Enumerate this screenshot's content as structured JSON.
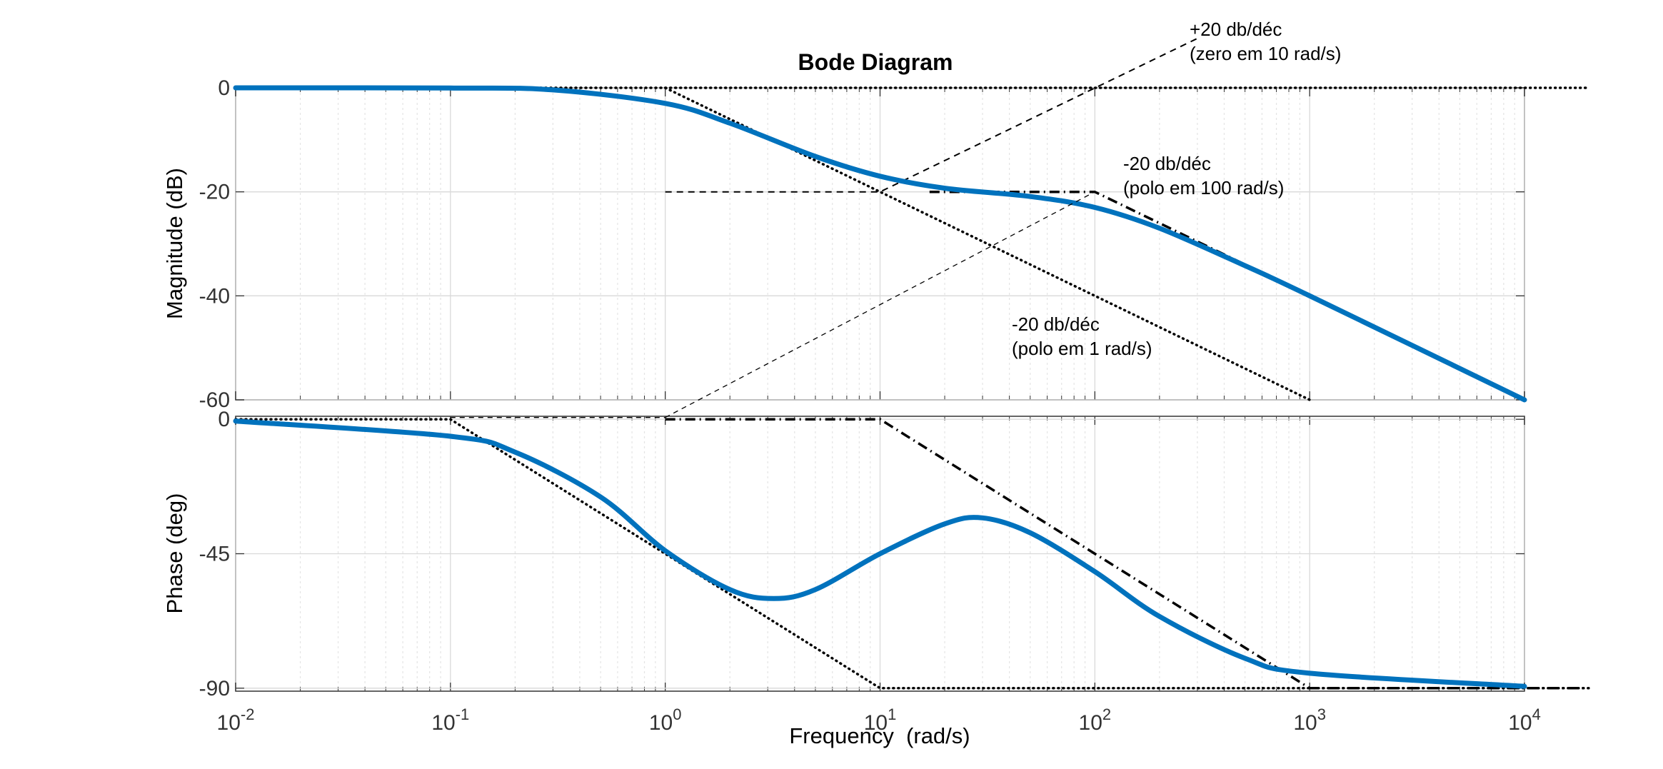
{
  "chart_data": {
    "type": "line",
    "title": "Bode Diagram",
    "xlabel": "Frequency  (rad/s)",
    "x_scale": "log",
    "xlim": [
      0.01,
      10000
    ],
    "x_ticks": [
      0.01,
      0.1,
      1,
      10,
      100,
      1000,
      10000
    ],
    "x_tick_base": "10",
    "x_tick_exponents": [
      "-2",
      "-1",
      "0",
      "1",
      "2",
      "3",
      "4"
    ],
    "grid": true,
    "magnitude": {
      "ylabel": "Magnitude (dB)",
      "ylim": [
        -60,
        0
      ],
      "y_ticks": [
        0,
        -20,
        -40,
        -60
      ],
      "y_tick_labels": [
        "0",
        "-20",
        "-40",
        "-60"
      ]
    },
    "phase": {
      "ylabel": "Phase (deg)",
      "ylim": [
        -91,
        1
      ],
      "y_ticks": [
        0,
        -45,
        -90
      ],
      "y_tick_labels": [
        "0",
        "-45",
        "-90"
      ]
    },
    "transfer_function": {
      "zeros_rad_s": [
        10
      ],
      "poles_rad_s": [
        1,
        100
      ]
    },
    "colors": {
      "response": "#0072BD",
      "asymptote": "#000000",
      "grid": "#d9d9d9",
      "axes": "#333333"
    },
    "series": [
      {
        "panel": "magnitude",
        "style": "solid",
        "x": [
          0.01,
          0.1,
          0.3,
          1,
          2,
          5,
          10,
          20,
          50,
          100,
          200,
          500,
          1000,
          10000
        ],
        "y": [
          0,
          -0.04,
          -0.4,
          -3,
          -6.8,
          -13.2,
          -17,
          -19.3,
          -20.9,
          -23.0,
          -27.0,
          -34.2,
          -40.0,
          -60.0
        ]
      },
      {
        "panel": "phase",
        "style": "solid",
        "x": [
          0.01,
          0.1,
          0.2,
          0.5,
          1,
          2,
          3.2,
          5,
          10,
          20,
          30,
          50,
          100,
          200,
          500,
          1000,
          10000
        ],
        "y": [
          -0.6,
          -5.7,
          -11,
          -26,
          -44,
          -57,
          -60,
          -57,
          -45,
          -35,
          -33,
          -38,
          -51,
          -66,
          -80,
          -85,
          -89.4
        ]
      },
      {
        "panel": "magnitude",
        "style": "dotted",
        "x": [
          0.01,
          1,
          1000
        ],
        "y": [
          0,
          0,
          -60
        ]
      },
      {
        "panel": "magnitude",
        "style": "dotted",
        "x": [
          1,
          20000
        ],
        "y": [
          0,
          0
        ]
      },
      {
        "panel": "magnitude",
        "style": "dashed",
        "x": [
          1,
          10,
          300
        ],
        "y": [
          -20,
          -20,
          9.5
        ]
      },
      {
        "panel": "magnitude",
        "style": "dashdot",
        "x": [
          17,
          100,
          10000
        ],
        "y": [
          -20,
          -20,
          -60
        ]
      },
      {
        "panel": "phase",
        "style": "dotted",
        "x": [
          0.01,
          0.1,
          10,
          20000
        ],
        "y": [
          0,
          0,
          -90,
          -90
        ]
      },
      {
        "panel": "phase",
        "style": "dashdot",
        "x": [
          1,
          10,
          1000,
          20000
        ],
        "y": [
          0,
          0,
          -90,
          -90
        ]
      },
      {
        "panel": "phase",
        "style": "dashed_thin",
        "x": [
          0.1,
          1
        ],
        "y": [
          0.6,
          0.6
        ]
      },
      {
        "panel": "cross",
        "style": "dashed_thin",
        "x": [
          1,
          100
        ],
        "y_phase": 0.6,
        "y_mag": -20
      }
    ],
    "annotations": [
      {
        "lines": [
          "+20 db/déc",
          "(zero em 10 rad/s)"
        ]
      },
      {
        "lines": [
          "-20 db/déc",
          "(polo em 100 rad/s)"
        ]
      },
      {
        "lines": [
          "-20 db/déc",
          "(polo em 1 rad/s)"
        ]
      }
    ]
  }
}
